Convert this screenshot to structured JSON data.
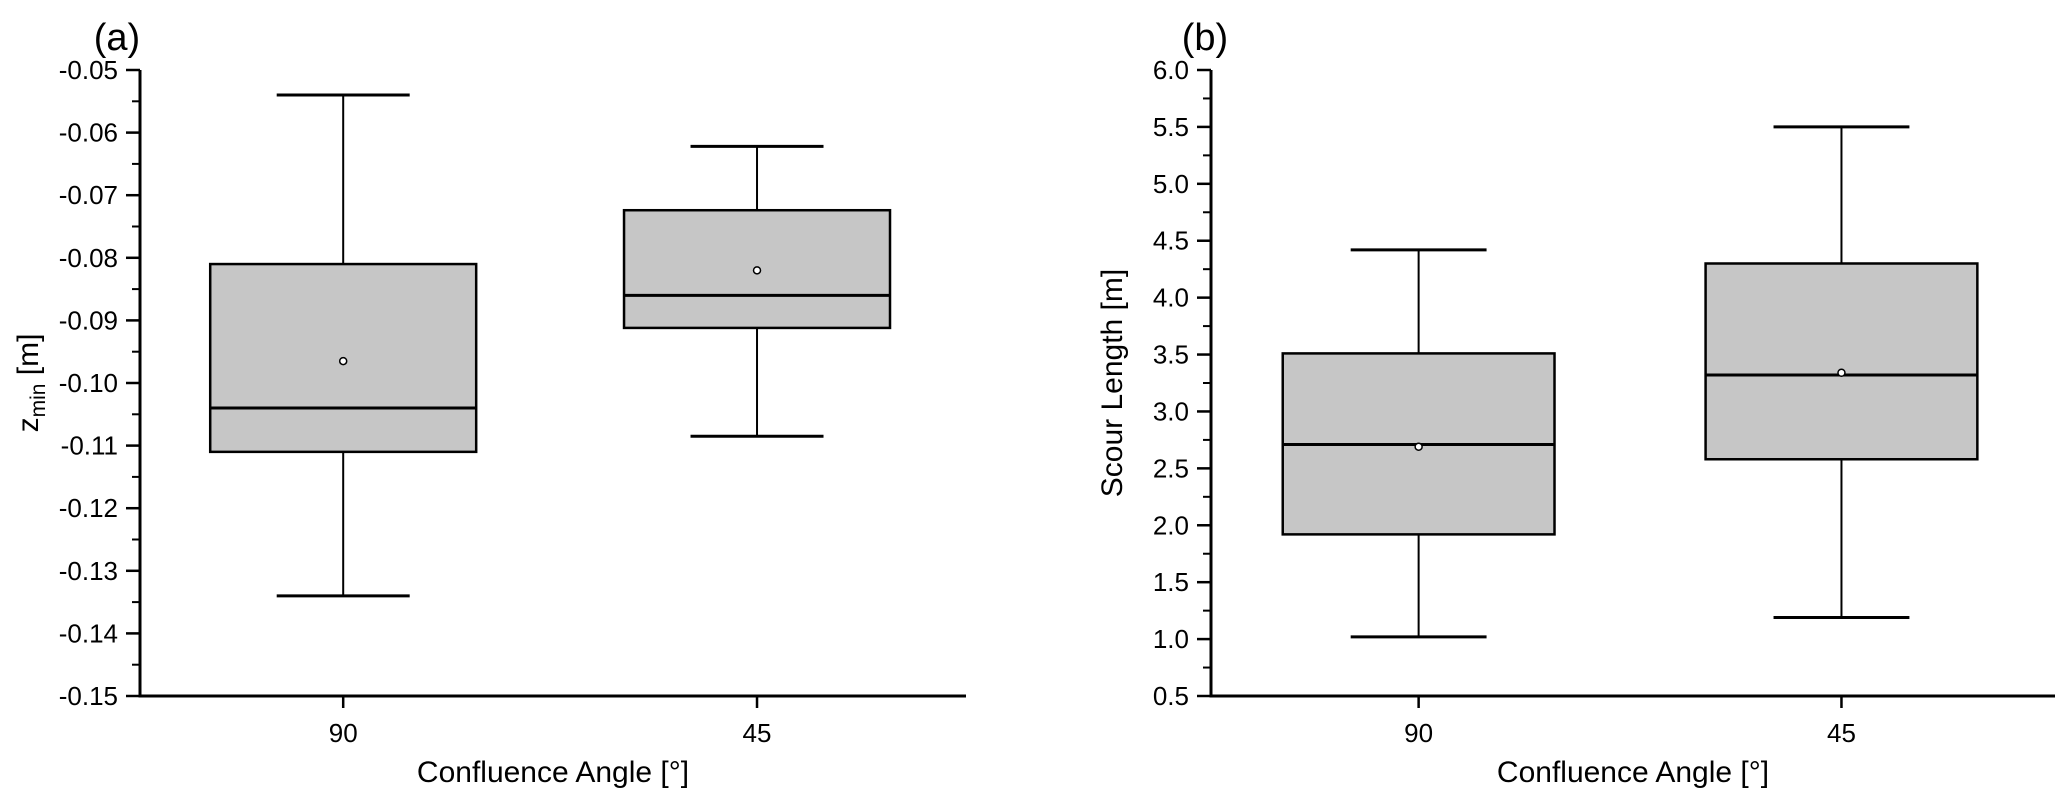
{
  "figure_title": "",
  "style": {
    "background": "#ffffff",
    "box_fill": "#c6c6c6",
    "line_color": "#000000",
    "text_color": "#000000"
  },
  "chart_data": [
    {
      "type": "box",
      "panel_label": "(a)",
      "xlabel": "Confluence Angle [°]",
      "ylabel": "z_min [m]",
      "ylabel_parts": [
        {
          "text": "z",
          "sub": false
        },
        {
          "text": "min",
          "sub": true
        },
        {
          "text": " [m]",
          "sub": false
        }
      ],
      "ylim": [
        -0.15,
        -0.05
      ],
      "y_tick_values": [
        -0.05,
        -0.06,
        -0.07,
        -0.08,
        -0.09,
        -0.1,
        -0.11,
        -0.12,
        -0.13,
        -0.14,
        -0.15
      ],
      "y_tick_labels": [
        "-0.05",
        "-0.06",
        "-0.07",
        "-0.08",
        "-0.09",
        "-0.10",
        "-0.11",
        "-0.12",
        "-0.13",
        "-0.14",
        "-0.15"
      ],
      "y_minor_step": 0.005,
      "grid": false,
      "legend": "none",
      "categories": [
        "90",
        "45"
      ],
      "boxes": [
        {
          "category": "90",
          "whisker_low": -0.134,
          "q1": -0.111,
          "median": -0.104,
          "q3": -0.081,
          "whisker_high": -0.054,
          "mean": -0.0965
        },
        {
          "category": "45",
          "whisker_low": -0.1085,
          "q1": -0.0912,
          "median": -0.086,
          "q3": -0.0724,
          "whisker_high": -0.0622,
          "mean": -0.082
        }
      ]
    },
    {
      "type": "box",
      "panel_label": "(b)",
      "xlabel": "Confluence Angle [°]",
      "ylabel": "Scour Length [m]",
      "ylabel_parts": [
        {
          "text": "Scour Length [m]",
          "sub": false
        }
      ],
      "ylim": [
        0.5,
        6.0
      ],
      "y_tick_values": [
        6.0,
        5.5,
        5.0,
        4.5,
        4.0,
        3.5,
        3.0,
        2.5,
        2.0,
        1.5,
        1.0,
        0.5
      ],
      "y_tick_labels": [
        "6.0",
        "5.5",
        "5.0",
        "4.5",
        "4.0",
        "3.5",
        "3.0",
        "2.5",
        "2.0",
        "1.5",
        "1.0",
        "0.5"
      ],
      "y_minor_step": 0.25,
      "grid": false,
      "legend": "none",
      "categories": [
        "90",
        "45"
      ],
      "boxes": [
        {
          "category": "90",
          "whisker_low": 1.02,
          "q1": 1.92,
          "median": 2.71,
          "q3": 3.51,
          "whisker_high": 4.42,
          "mean": 2.69
        },
        {
          "category": "45",
          "whisker_low": 1.19,
          "q1": 2.58,
          "median": 3.32,
          "q3": 4.3,
          "whisker_high": 5.5,
          "mean": 3.34
        }
      ]
    }
  ]
}
